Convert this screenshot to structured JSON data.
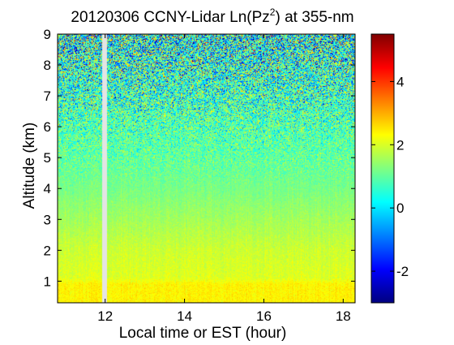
{
  "chart_data": {
    "type": "heatmap",
    "title": {
      "prefix": "20120306 CCNY-Lidar Ln(Pz",
      "superscript": "2",
      "suffix": ") at 355-nm"
    },
    "xlabel": "Local time or EST (hour)",
    "ylabel": "Altitude (km)",
    "xlim": [
      10.8,
      18.3
    ],
    "ylim": [
      0.3,
      9.0
    ],
    "x_ticks": [
      12,
      14,
      16,
      18
    ],
    "y_ticks": [
      1,
      2,
      3,
      4,
      5,
      6,
      7,
      8,
      9
    ],
    "colorbar": {
      "range": [
        -3,
        5.5
      ],
      "ticks": [
        -2,
        0,
        2,
        4
      ],
      "colormap": "jet"
    },
    "data_gap": {
      "x_start": 11.93,
      "x_end": 12.05
    },
    "field_profile": [
      {
        "altitude_km": 0.3,
        "mean_value": 2.4
      },
      {
        "altitude_km": 0.9,
        "mean_value": 2.4
      },
      {
        "altitude_km": 1.1,
        "mean_value": 2.05
      },
      {
        "altitude_km": 2.0,
        "mean_value": 1.9
      },
      {
        "altitude_km": 3.0,
        "mean_value": 1.55
      },
      {
        "altitude_km": 4.0,
        "mean_value": 1.2
      },
      {
        "altitude_km": 5.0,
        "mean_value": 1.0
      },
      {
        "altitude_km": 6.0,
        "mean_value": 0.85
      },
      {
        "altitude_km": 7.0,
        "mean_value": 0.7
      },
      {
        "altitude_km": 8.0,
        "mean_value": 0.6
      },
      {
        "altitude_km": 9.0,
        "mean_value": 0.55
      }
    ]
  }
}
